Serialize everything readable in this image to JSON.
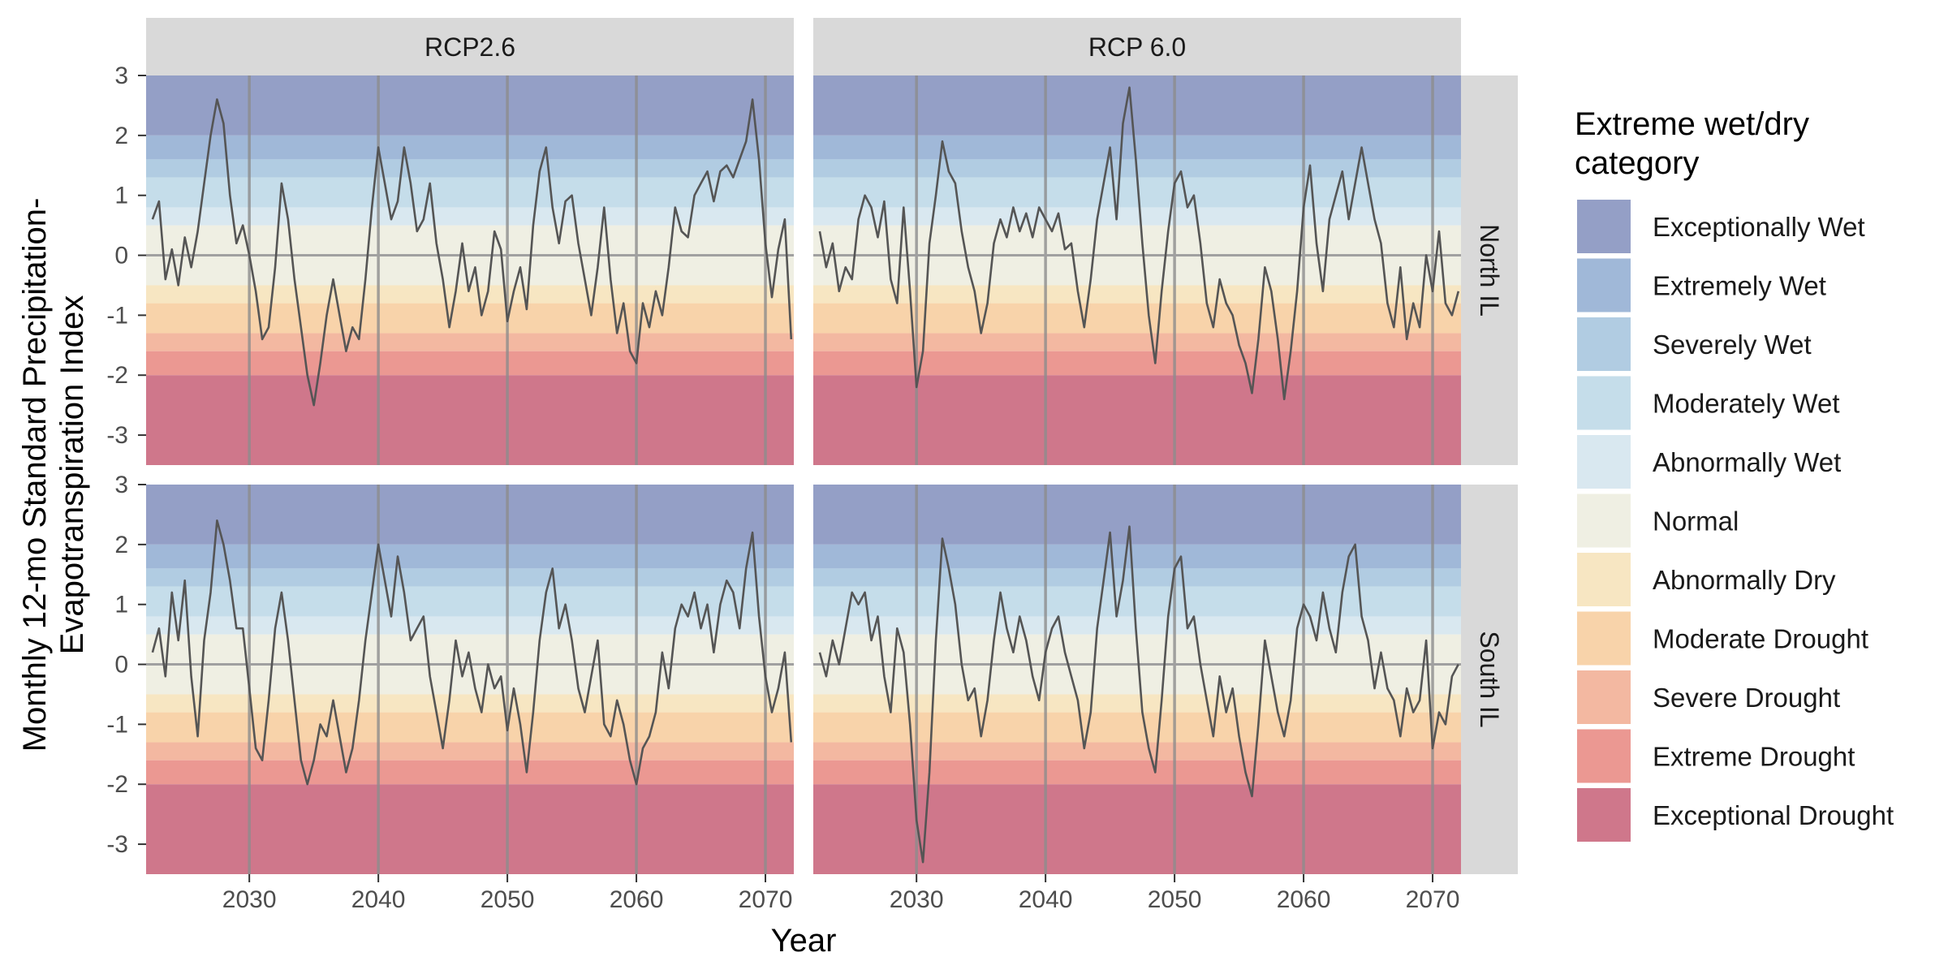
{
  "chart_data": {
    "type": "line",
    "xlabel": "Year",
    "ylabel": "Monthly 12-mo Standard Precipitation-Evapotranspiration Index",
    "ylabel_lines": [
      "Monthly 12-mo Standard Precipitation-",
      "Evapotranspiration Index"
    ],
    "xlim": [
      2022,
      2072.2
    ],
    "ylim": [
      -3.5,
      3.0
    ],
    "x_ticks": [
      2030,
      2040,
      2050,
      2060,
      2070
    ],
    "x_tick_labels": [
      "2030",
      "2040",
      "2050",
      "2060",
      "2070"
    ],
    "y_ticks": [
      -3,
      -2,
      -1,
      0,
      1,
      2,
      3
    ],
    "y_tick_labels": [
      "-3",
      "-2",
      "-1",
      "0",
      "1",
      "2",
      "3"
    ],
    "columns": [
      "RCP2.6",
      "RCP 6.0"
    ],
    "rows": [
      "North IL",
      "South IL"
    ],
    "reference_lines": {
      "vertical": [
        2030,
        2040,
        2050,
        2060,
        2070
      ],
      "horizontal": [
        0
      ]
    },
    "legend": {
      "title": "Extreme wet/dry category",
      "title_lines": [
        "Extreme wet/dry",
        "category"
      ],
      "position": "right",
      "items": [
        {
          "label": "Exceptionally Wet",
          "color": "#949fc6"
        },
        {
          "label": "Extremely Wet",
          "color": "#a0b8d8"
        },
        {
          "label": "Severely Wet",
          "color": "#b1cce2"
        },
        {
          "label": "Moderately Wet",
          "color": "#c5ddea"
        },
        {
          "label": "Abnormally Wet",
          "color": "#d9e8f0"
        },
        {
          "label": "Normal",
          "color": "#efefe3"
        },
        {
          "label": "Abnormally Dry",
          "color": "#f7e6c2"
        },
        {
          "label": "Moderate Drought",
          "color": "#f8d3aa"
        },
        {
          "label": "Severe Drought",
          "color": "#f3b8a1"
        },
        {
          "label": "Extreme Drought",
          "color": "#eb9892"
        },
        {
          "label": "Exceptional Drought",
          "color": "#cf778b"
        }
      ]
    },
    "bands": [
      {
        "category": "Exceptionally Wet",
        "from": 2.0,
        "to": 3.0
      },
      {
        "category": "Extremely Wet",
        "from": 1.6,
        "to": 2.0
      },
      {
        "category": "Severely Wet",
        "from": 1.3,
        "to": 1.6
      },
      {
        "category": "Moderately Wet",
        "from": 0.8,
        "to": 1.3
      },
      {
        "category": "Abnormally Wet",
        "from": 0.5,
        "to": 0.8
      },
      {
        "category": "Normal",
        "from": -0.5,
        "to": 0.5
      },
      {
        "category": "Abnormally Dry",
        "from": -0.8,
        "to": -0.5
      },
      {
        "category": "Moderate Drought",
        "from": -1.3,
        "to": -0.8
      },
      {
        "category": "Severe Drought",
        "from": -1.6,
        "to": -1.3
      },
      {
        "category": "Extreme Drought",
        "from": -2.0,
        "to": -1.6
      },
      {
        "category": "Exceptional Drought",
        "from": -3.5,
        "to": -2.0
      }
    ],
    "panels": [
      {
        "scenario": "RCP2.6",
        "region": "North IL",
        "x": [
          2022.5,
          2023.0,
          2023.5,
          2024.0,
          2024.5,
          2025.0,
          2025.5,
          2026.0,
          2026.5,
          2027.0,
          2027.5,
          2028.0,
          2028.5,
          2029.0,
          2029.5,
          2030.0,
          2030.5,
          2031.0,
          2031.5,
          2032.0,
          2032.5,
          2033.0,
          2033.5,
          2034.0,
          2034.5,
          2035.0,
          2035.5,
          2036.0,
          2036.5,
          2037.0,
          2037.5,
          2038.0,
          2038.5,
          2039.0,
          2039.5,
          2040.0,
          2040.5,
          2041.0,
          2041.5,
          2042.0,
          2042.5,
          2043.0,
          2043.5,
          2044.0,
          2044.5,
          2045.0,
          2045.5,
          2046.0,
          2046.5,
          2047.0,
          2047.5,
          2048.0,
          2048.5,
          2049.0,
          2049.5,
          2050.0,
          2050.5,
          2051.0,
          2051.5,
          2052.0,
          2052.5,
          2053.0,
          2053.5,
          2054.0,
          2054.5,
          2055.0,
          2055.5,
          2056.0,
          2056.5,
          2057.0,
          2057.5,
          2058.0,
          2058.5,
          2059.0,
          2059.5,
          2060.0,
          2060.5,
          2061.0,
          2061.5,
          2062.0,
          2062.5,
          2063.0,
          2063.5,
          2064.0,
          2064.5,
          2065.0,
          2065.5,
          2066.0,
          2066.5,
          2067.0,
          2067.5,
          2068.0,
          2068.5,
          2069.0,
          2069.5,
          2070.0,
          2070.5,
          2071.0,
          2071.5,
          2072.0
        ],
        "y": [
          0.6,
          0.9,
          -0.4,
          0.1,
          -0.5,
          0.3,
          -0.2,
          0.4,
          1.2,
          2.0,
          2.6,
          2.2,
          1.0,
          0.2,
          0.5,
          0.0,
          -0.6,
          -1.4,
          -1.2,
          -0.2,
          1.2,
          0.6,
          -0.4,
          -1.2,
          -2.0,
          -2.5,
          -1.8,
          -1.0,
          -0.4,
          -1.0,
          -1.6,
          -1.2,
          -1.4,
          -0.4,
          0.8,
          1.8,
          1.2,
          0.6,
          0.9,
          1.8,
          1.2,
          0.4,
          0.6,
          1.2,
          0.2,
          -0.4,
          -1.2,
          -0.6,
          0.2,
          -0.6,
          -0.2,
          -1.0,
          -0.6,
          0.4,
          0.1,
          -1.1,
          -0.6,
          -0.2,
          -0.9,
          0.5,
          1.4,
          1.8,
          0.8,
          0.2,
          0.9,
          1.0,
          0.2,
          -0.4,
          -1.0,
          -0.2,
          0.8,
          -0.4,
          -1.3,
          -0.8,
          -1.6,
          -1.8,
          -0.8,
          -1.2,
          -0.6,
          -1.0,
          -0.2,
          0.8,
          0.4,
          0.3,
          1.0,
          1.2,
          1.4,
          0.9,
          1.4,
          1.5,
          1.3,
          1.6,
          1.9,
          2.6,
          1.6,
          0.2,
          -0.7,
          0.1,
          0.6,
          -1.4
        ]
      },
      {
        "scenario": "RCP 6.0",
        "region": "North IL",
        "x": [
          2022.5,
          2023.0,
          2023.5,
          2024.0,
          2024.5,
          2025.0,
          2025.5,
          2026.0,
          2026.5,
          2027.0,
          2027.5,
          2028.0,
          2028.5,
          2029.0,
          2029.5,
          2030.0,
          2030.5,
          2031.0,
          2031.5,
          2032.0,
          2032.5,
          2033.0,
          2033.5,
          2034.0,
          2034.5,
          2035.0,
          2035.5,
          2036.0,
          2036.5,
          2037.0,
          2037.5,
          2038.0,
          2038.5,
          2039.0,
          2039.5,
          2040.0,
          2040.5,
          2041.0,
          2041.5,
          2042.0,
          2042.5,
          2043.0,
          2043.5,
          2044.0,
          2044.5,
          2045.0,
          2045.5,
          2046.0,
          2046.5,
          2047.0,
          2047.5,
          2048.0,
          2048.5,
          2049.0,
          2049.5,
          2050.0,
          2050.5,
          2051.0,
          2051.5,
          2052.0,
          2052.5,
          2053.0,
          2053.5,
          2054.0,
          2054.5,
          2055.0,
          2055.5,
          2056.0,
          2056.5,
          2057.0,
          2057.5,
          2058.0,
          2058.5,
          2059.0,
          2059.5,
          2060.0,
          2060.5,
          2061.0,
          2061.5,
          2062.0,
          2062.5,
          2063.0,
          2063.5,
          2064.0,
          2064.5,
          2065.0,
          2065.5,
          2066.0,
          2066.5,
          2067.0,
          2067.5,
          2068.0,
          2068.5,
          2069.0,
          2069.5,
          2070.0,
          2070.5,
          2071.0,
          2071.5,
          2072.0
        ],
        "y": [
          0.4,
          -0.2,
          0.2,
          -0.6,
          -0.2,
          -0.4,
          0.6,
          1.0,
          0.8,
          0.3,
          0.9,
          -0.4,
          -0.8,
          0.8,
          -0.6,
          -2.2,
          -1.6,
          0.2,
          1.0,
          1.9,
          1.4,
          1.2,
          0.4,
          -0.2,
          -0.6,
          -1.3,
          -0.8,
          0.2,
          0.6,
          0.3,
          0.8,
          0.4,
          0.7,
          0.3,
          0.8,
          0.6,
          0.4,
          0.7,
          0.1,
          0.2,
          -0.6,
          -1.2,
          -0.4,
          0.6,
          1.2,
          1.8,
          0.6,
          2.2,
          2.8,
          1.6,
          0.2,
          -1.0,
          -1.8,
          -0.6,
          0.4,
          1.2,
          1.4,
          0.8,
          1.0,
          0.2,
          -0.8,
          -1.2,
          -0.4,
          -0.8,
          -1.0,
          -1.5,
          -1.8,
          -2.3,
          -1.4,
          -0.2,
          -0.6,
          -1.4,
          -2.4,
          -1.6,
          -0.6,
          0.8,
          1.5,
          0.2,
          -0.6,
          0.6,
          1.0,
          1.4,
          0.6,
          1.2,
          1.8,
          1.2,
          0.6,
          0.2,
          -0.8,
          -1.2,
          -0.2,
          -1.4,
          -0.8,
          -1.2,
          0.0,
          -0.6,
          0.4,
          -0.8,
          -1.0,
          -0.6
        ]
      },
      {
        "scenario": "RCP2.6",
        "region": "South IL",
        "x": [
          2022.5,
          2023.0,
          2023.5,
          2024.0,
          2024.5,
          2025.0,
          2025.5,
          2026.0,
          2026.5,
          2027.0,
          2027.5,
          2028.0,
          2028.5,
          2029.0,
          2029.5,
          2030.0,
          2030.5,
          2031.0,
          2031.5,
          2032.0,
          2032.5,
          2033.0,
          2033.5,
          2034.0,
          2034.5,
          2035.0,
          2035.5,
          2036.0,
          2036.5,
          2037.0,
          2037.5,
          2038.0,
          2038.5,
          2039.0,
          2039.5,
          2040.0,
          2040.5,
          2041.0,
          2041.5,
          2042.0,
          2042.5,
          2043.0,
          2043.5,
          2044.0,
          2044.5,
          2045.0,
          2045.5,
          2046.0,
          2046.5,
          2047.0,
          2047.5,
          2048.0,
          2048.5,
          2049.0,
          2049.5,
          2050.0,
          2050.5,
          2051.0,
          2051.5,
          2052.0,
          2052.5,
          2053.0,
          2053.5,
          2054.0,
          2054.5,
          2055.0,
          2055.5,
          2056.0,
          2056.5,
          2057.0,
          2057.5,
          2058.0,
          2058.5,
          2059.0,
          2059.5,
          2060.0,
          2060.5,
          2061.0,
          2061.5,
          2062.0,
          2062.5,
          2063.0,
          2063.5,
          2064.0,
          2064.5,
          2065.0,
          2065.5,
          2066.0,
          2066.5,
          2067.0,
          2067.5,
          2068.0,
          2068.5,
          2069.0,
          2069.5,
          2070.0,
          2070.5,
          2071.0,
          2071.5,
          2072.0
        ],
        "y": [
          0.2,
          0.6,
          -0.2,
          1.2,
          0.4,
          1.4,
          -0.2,
          -1.2,
          0.4,
          1.2,
          2.4,
          2.0,
          1.4,
          0.6,
          0.6,
          -0.4,
          -1.4,
          -1.6,
          -0.6,
          0.6,
          1.2,
          0.4,
          -0.6,
          -1.6,
          -2.0,
          -1.6,
          -1.0,
          -1.2,
          -0.6,
          -1.2,
          -1.8,
          -1.4,
          -0.6,
          0.4,
          1.2,
          2.0,
          1.4,
          0.8,
          1.8,
          1.2,
          0.4,
          0.6,
          0.8,
          -0.2,
          -0.8,
          -1.4,
          -0.6,
          0.4,
          -0.2,
          0.2,
          -0.4,
          -0.8,
          0.0,
          -0.4,
          -0.2,
          -1.1,
          -0.4,
          -1.0,
          -1.8,
          -0.8,
          0.4,
          1.2,
          1.6,
          0.6,
          1.0,
          0.4,
          -0.4,
          -0.8,
          -0.2,
          0.4,
          -1.0,
          -1.2,
          -0.6,
          -1.0,
          -1.6,
          -2.0,
          -1.4,
          -1.2,
          -0.8,
          0.2,
          -0.4,
          0.6,
          1.0,
          0.8,
          1.2,
          0.6,
          1.0,
          0.2,
          1.0,
          1.4,
          1.2,
          0.6,
          1.6,
          2.2,
          0.8,
          -0.2,
          -0.8,
          -0.4,
          0.2,
          -1.3
        ]
      },
      {
        "scenario": "RCP 6.0",
        "region": "South IL",
        "x": [
          2022.5,
          2023.0,
          2023.5,
          2024.0,
          2024.5,
          2025.0,
          2025.5,
          2026.0,
          2026.5,
          2027.0,
          2027.5,
          2028.0,
          2028.5,
          2029.0,
          2029.5,
          2030.0,
          2030.5,
          2031.0,
          2031.5,
          2032.0,
          2032.5,
          2033.0,
          2033.5,
          2034.0,
          2034.5,
          2035.0,
          2035.5,
          2036.0,
          2036.5,
          2037.0,
          2037.5,
          2038.0,
          2038.5,
          2039.0,
          2039.5,
          2040.0,
          2040.5,
          2041.0,
          2041.5,
          2042.0,
          2042.5,
          2043.0,
          2043.5,
          2044.0,
          2044.5,
          2045.0,
          2045.5,
          2046.0,
          2046.5,
          2047.0,
          2047.5,
          2048.0,
          2048.5,
          2049.0,
          2049.5,
          2050.0,
          2050.5,
          2051.0,
          2051.5,
          2052.0,
          2052.5,
          2053.0,
          2053.5,
          2054.0,
          2054.5,
          2055.0,
          2055.5,
          2056.0,
          2056.5,
          2057.0,
          2057.5,
          2058.0,
          2058.5,
          2059.0,
          2059.5,
          2060.0,
          2060.5,
          2061.0,
          2061.5,
          2062.0,
          2062.5,
          2063.0,
          2063.5,
          2064.0,
          2064.5,
          2065.0,
          2065.5,
          2066.0,
          2066.5,
          2067.0,
          2067.5,
          2068.0,
          2068.5,
          2069.0,
          2069.5,
          2070.0,
          2070.5,
          2071.0,
          2071.5,
          2072.0
        ],
        "y": [
          0.2,
          -0.2,
          0.4,
          0.0,
          0.6,
          1.2,
          1.0,
          1.2,
          0.4,
          0.8,
          -0.2,
          -0.8,
          0.6,
          0.2,
          -1.0,
          -2.6,
          -3.3,
          -1.8,
          0.4,
          2.1,
          1.6,
          1.0,
          0.0,
          -0.6,
          -0.4,
          -1.2,
          -0.6,
          0.4,
          1.2,
          0.6,
          0.2,
          0.8,
          0.4,
          -0.2,
          -0.6,
          0.2,
          0.6,
          0.8,
          0.2,
          -0.2,
          -0.6,
          -1.4,
          -0.8,
          0.6,
          1.4,
          2.2,
          0.8,
          1.4,
          2.3,
          0.6,
          -0.8,
          -1.4,
          -1.8,
          -0.6,
          0.8,
          1.6,
          1.8,
          0.6,
          0.8,
          0.0,
          -0.6,
          -1.2,
          -0.2,
          -0.8,
          -0.4,
          -1.2,
          -1.8,
          -2.2,
          -1.0,
          0.4,
          -0.2,
          -0.8,
          -1.2,
          -0.6,
          0.6,
          1.0,
          0.8,
          0.4,
          1.2,
          0.6,
          0.2,
          1.2,
          1.8,
          2.0,
          0.8,
          0.4,
          -0.4,
          0.2,
          -0.4,
          -0.6,
          -1.2,
          -0.4,
          -0.8,
          -0.6,
          0.4,
          -1.4,
          -0.8,
          -1.0,
          -0.2,
          0.0
        ]
      }
    ]
  }
}
